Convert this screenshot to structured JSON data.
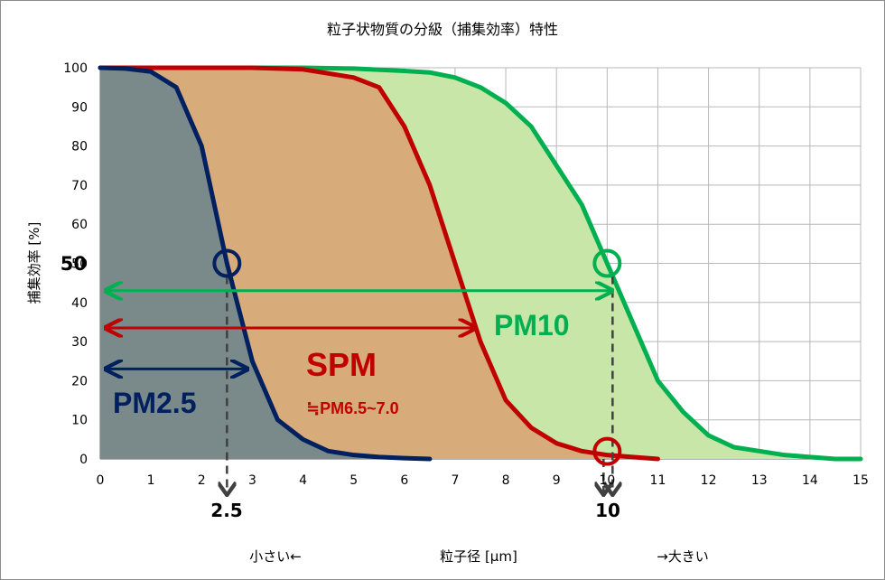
{
  "chart_data": {
    "type": "area",
    "title": "粒子状物質の分級（捕集効率）特性",
    "xlabel": "粒子径 [μm]",
    "ylabel": "捕集効率 [%]",
    "x_hint_left": "小さい←",
    "x_hint_right": "→大きい",
    "xlim": [
      0,
      15
    ],
    "ylim": [
      0,
      100
    ],
    "xticks": [
      "0",
      "1",
      "2",
      "3",
      "4",
      "5",
      "6",
      "7",
      "8",
      "9",
      "10",
      "11",
      "12",
      "13",
      "14",
      "15"
    ],
    "yticks": [
      "0",
      "10",
      "20",
      "30",
      "40",
      "50",
      "60",
      "70",
      "80",
      "90",
      "100"
    ],
    "grid": true,
    "series": [
      {
        "name": "PM10",
        "color": "#00b050",
        "fill": "#c8e6a8",
        "x": [
          0,
          4,
          5,
          6,
          6.5,
          7,
          7.5,
          8,
          8.5,
          9,
          9.5,
          10,
          10.5,
          11,
          11.5,
          12,
          12.5,
          13,
          13.5,
          14,
          14.5,
          15
        ],
        "y": [
          100,
          100,
          99.8,
          99.2,
          98.8,
          97.5,
          95,
          91,
          85,
          75,
          65,
          50,
          35,
          20,
          12,
          6,
          3,
          2,
          1,
          0.5,
          0,
          0
        ]
      },
      {
        "name": "SPM",
        "color": "#c00000",
        "fill": "#d8ac7a",
        "x": [
          0,
          3,
          4,
          5,
          5.5,
          6,
          6.5,
          7,
          7.5,
          8,
          8.5,
          9,
          9.5,
          10,
          10.5,
          11
        ],
        "y": [
          100,
          100,
          99.6,
          97.5,
          95,
          85,
          70,
          50,
          30,
          15,
          8,
          4,
          2,
          1,
          0.5,
          0
        ]
      },
      {
        "name": "PM2.5",
        "color": "#002060",
        "fill": "#7a8a8a",
        "x": [
          0,
          0.5,
          1,
          1.5,
          2,
          2.5,
          3,
          3.5,
          4,
          4.5,
          5,
          5.5,
          6,
          6.5
        ],
        "y": [
          100,
          99.8,
          99,
          95,
          80,
          50,
          25,
          10,
          5,
          2,
          1,
          0.5,
          0.2,
          0
        ]
      }
    ],
    "annotations": {
      "y50_label": "50",
      "pm25_x_label": "2.5",
      "pm10_x_label": "10",
      "pm25_label": "PM2.5",
      "spm_label": "SPM",
      "spm_sub_label": "≒PM6.5~7.0",
      "pm10_label": "PM10",
      "pm25_arrow_y": 23,
      "spm_arrow_y": 33.5,
      "pm10_arrow_y": 43,
      "pm25_arrow_x_end": 2.9,
      "spm_arrow_x_end": 7.4,
      "pm10_arrow_x_end": 10.1,
      "marker_pm25": [
        2.5,
        50
      ],
      "marker_pm10": [
        10,
        50
      ],
      "marker_spm": [
        10,
        1
      ]
    }
  }
}
